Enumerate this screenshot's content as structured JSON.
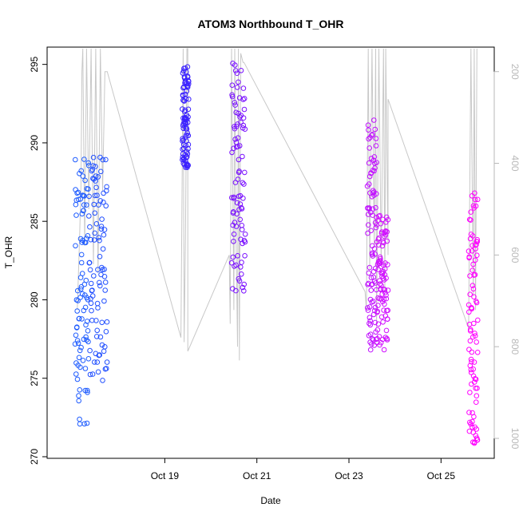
{
  "chart_data": {
    "type": "scatter",
    "title": "ATOM3 Northbound T_OHR",
    "xlabel": "Date",
    "ylabel": "T_OHR",
    "x_ticks": [
      "Oct 19",
      "Oct 21",
      "Oct 23",
      "Oct 25"
    ],
    "x_tick_days": [
      19,
      21,
      23,
      25
    ],
    "xlim_days": [
      16.6,
      26.0
    ],
    "ylim": [
      270,
      296
    ],
    "y_ticks": [
      270,
      275,
      280,
      285,
      290,
      295
    ],
    "y2_ticks": [
      200,
      400,
      600,
      800,
      1000
    ],
    "y2lim": [
      1040,
      150
    ],
    "y2_reversed": true,
    "grid": false,
    "colors": {
      "start": "#1f5cff",
      "mid": "#8a00ff",
      "end": "#ff00ff",
      "trace": "#c8c8c8"
    },
    "clusters": [
      {
        "start": 17.05,
        "end": 17.35,
        "ymin": 272.0,
        "ymax": 289.0,
        "color": "#1f5cff"
      },
      {
        "start": 17.35,
        "end": 17.75,
        "ymin": 274.8,
        "ymax": 289.2,
        "color": "#2250ff"
      },
      {
        "start": 19.38,
        "end": 19.52,
        "ymin": 288.4,
        "ymax": 295.0,
        "color": "#3a20ff"
      },
      {
        "start": 20.45,
        "end": 20.75,
        "ymin": 280.4,
        "ymax": 295.1,
        "color": "#7a10ff"
      },
      {
        "start": 23.4,
        "end": 23.6,
        "ymin": 276.8,
        "ymax": 292.1,
        "color": "#c010ff"
      },
      {
        "start": 23.6,
        "end": 23.85,
        "ymin": 276.8,
        "ymax": 285.6,
        "color": "#d010ff"
      },
      {
        "start": 25.6,
        "end": 25.8,
        "ymin": 270.8,
        "ymax": 287.3,
        "color": "#ff00ff"
      }
    ],
    "trace_series": [
      [
        17.1,
        720
      ],
      [
        17.15,
        560
      ],
      [
        17.18,
        450
      ],
      [
        17.2,
        200
      ],
      [
        17.22,
        150
      ],
      [
        17.26,
        580
      ],
      [
        17.3,
        150
      ],
      [
        17.35,
        500
      ],
      [
        17.4,
        150
      ],
      [
        17.45,
        620
      ],
      [
        17.5,
        150
      ],
      [
        17.55,
        640
      ],
      [
        17.6,
        150
      ],
      [
        17.65,
        460
      ],
      [
        17.7,
        200
      ],
      [
        17.75,
        200
      ],
      [
        19.35,
        780
      ],
      [
        19.4,
        150
      ],
      [
        19.42,
        790
      ],
      [
        19.45,
        560
      ],
      [
        19.48,
        150
      ],
      [
        19.5,
        150
      ],
      [
        19.5,
        810
      ],
      [
        20.4,
        600
      ],
      [
        20.42,
        750
      ],
      [
        20.45,
        150
      ],
      [
        20.5,
        720
      ],
      [
        20.52,
        150
      ],
      [
        20.55,
        580
      ],
      [
        20.58,
        800
      ],
      [
        20.6,
        150
      ],
      [
        20.62,
        830
      ],
      [
        20.65,
        160
      ],
      [
        20.7,
        180
      ],
      [
        20.72,
        180
      ],
      [
        23.35,
        680
      ],
      [
        23.38,
        720
      ],
      [
        23.42,
        150
      ],
      [
        23.45,
        630
      ],
      [
        23.5,
        150
      ],
      [
        23.55,
        580
      ],
      [
        23.58,
        150
      ],
      [
        23.6,
        760
      ],
      [
        23.65,
        150
      ],
      [
        23.7,
        620
      ],
      [
        23.75,
        150
      ],
      [
        23.78,
        680
      ],
      [
        23.8,
        150
      ],
      [
        23.85,
        600
      ],
      [
        23.85,
        260
      ],
      [
        23.85,
        260
      ],
      [
        25.6,
        760
      ],
      [
        25.65,
        150
      ],
      [
        25.7,
        690
      ],
      [
        25.72,
        150
      ],
      [
        25.75,
        720
      ],
      [
        25.78,
        150
      ]
    ]
  }
}
